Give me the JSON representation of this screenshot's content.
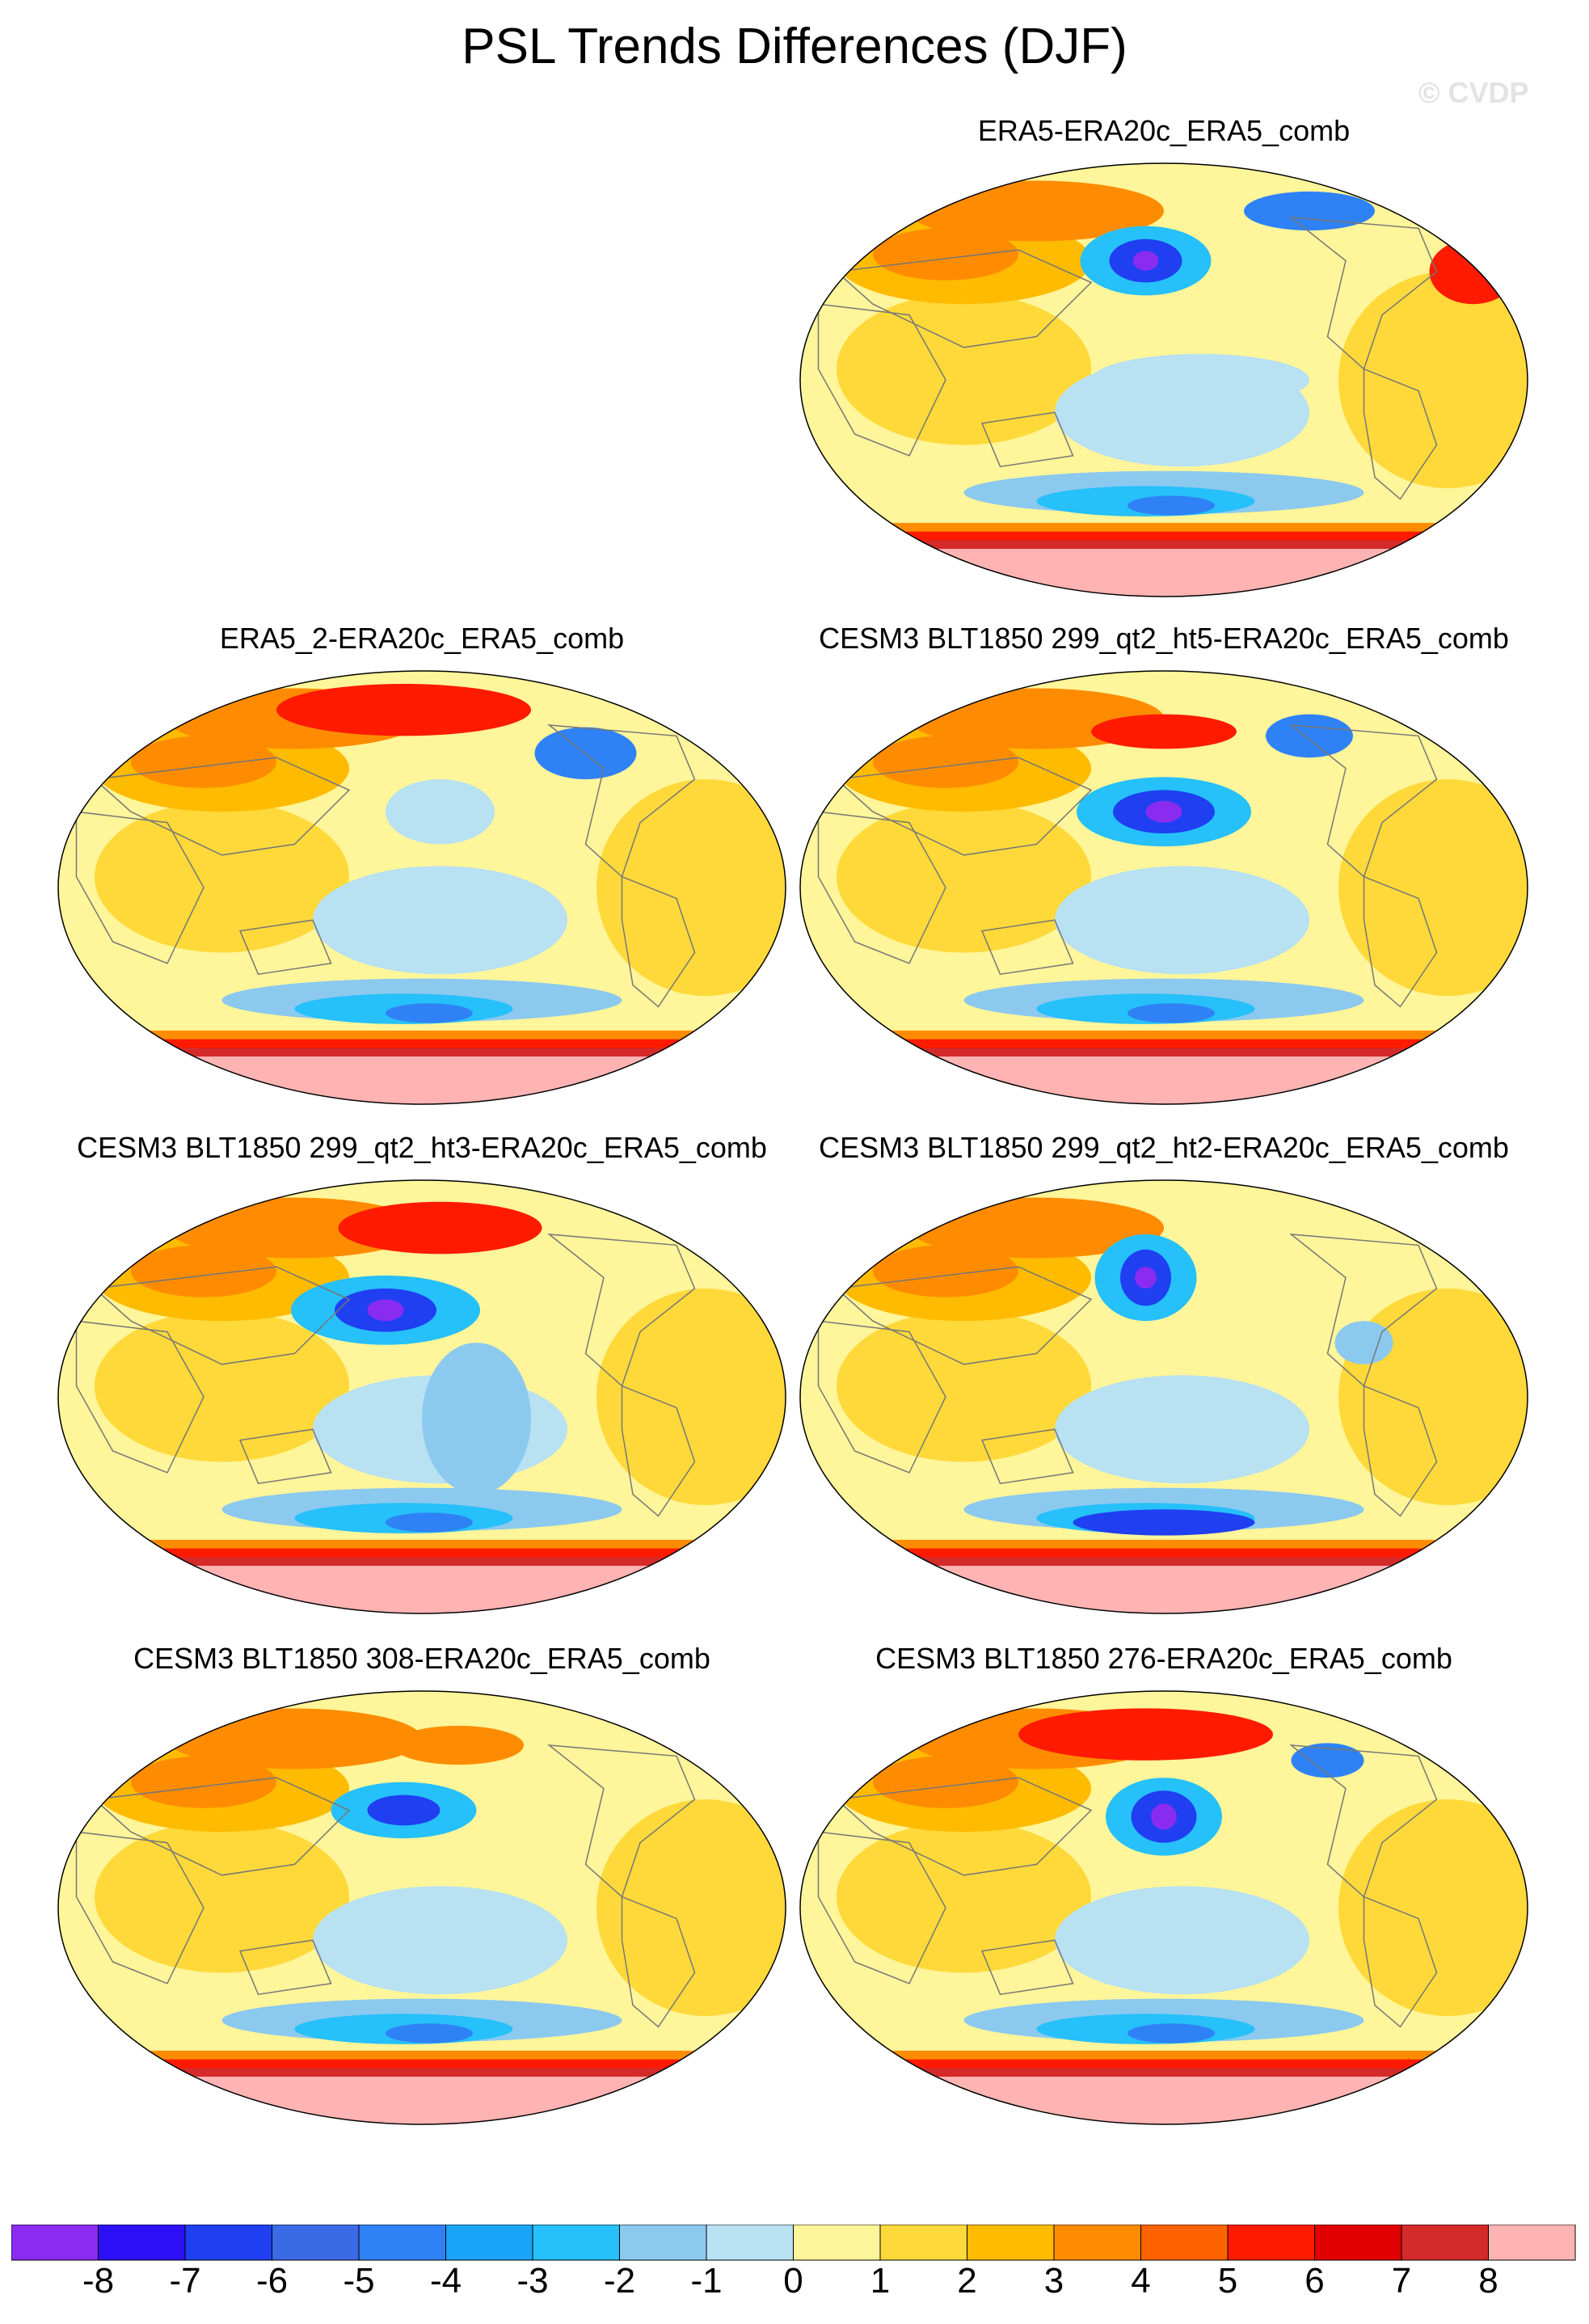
{
  "title": "PSL Trends Differences (DJF)",
  "watermark": "© CVDP",
  "panels": [
    {
      "label": "ERA5-ERA20c_ERA5_comb"
    },
    {
      "label": "ERA5_2-ERA20c_ERA5_comb"
    },
    {
      "label": "CESM3 BLT1850 299_qt2_ht5-ERA20c_ERA5_comb"
    },
    {
      "label": "CESM3 BLT1850 299_qt2_ht3-ERA20c_ERA5_comb"
    },
    {
      "label": "CESM3 BLT1850 299_qt2_ht2-ERA20c_ERA5_comb"
    },
    {
      "label": "CESM3 BLT1850 308-ERA20c_ERA5_comb"
    },
    {
      "label": "CESM3 BLT1850 276-ERA20c_ERA5_comb"
    }
  ],
  "colorbar": {
    "ticks": [
      "-8",
      "-7",
      "-6",
      "-5",
      "-4",
      "-3",
      "-2",
      "-1",
      "0",
      "1",
      "2",
      "3",
      "4",
      "5",
      "6",
      "7",
      "8"
    ],
    "colors": [
      "#8a2cf0",
      "#2d10f5",
      "#1f3ff0",
      "#3b6ae6",
      "#2f82f5",
      "#1aa4f7",
      "#26c0fa",
      "#8cc9ef",
      "#b8e1f2",
      "#fff59a",
      "#ffd93a",
      "#ffbb00",
      "#ff8c00",
      "#ff6200",
      "#ff1a00",
      "#e00000",
      "#d42a2a",
      "#ffb3b3"
    ]
  },
  "map_palette": {
    "ocean_base": "#fff59a",
    "ocean_pos": "#ffd93a",
    "land_pos": "#ffbb00",
    "strong_pos": "#ff8c00",
    "very_pos": "#ff1a00",
    "extreme_pos": "#d42a2a",
    "polar": "#ffb3b3",
    "light_neg": "#b8e1f2",
    "neg": "#8cc9ef",
    "mid_neg": "#26c0fa",
    "strong_neg": "#2f82f5",
    "very_neg": "#1f3ff0",
    "extreme_neg": "#8a2cf0",
    "coast": "#777777"
  }
}
